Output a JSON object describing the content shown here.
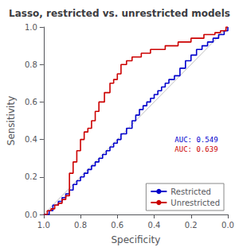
{
  "chart_data": {
    "type": "step",
    "title": "Lasso, restricted vs. unrestricted models",
    "xlabel": "Specificity",
    "ylabel": "Sensitivity",
    "xlim": [
      1.0,
      0.0
    ],
    "ylim": [
      0.0,
      1.0
    ],
    "xticks": [
      {
        "value": 1.0,
        "label": "1.0"
      },
      0.8,
      0.6,
      0.4,
      0.2,
      {
        "value": 0.0,
        "label": "0.0"
      }
    ],
    "yticks": [
      {
        "value": 0.0,
        "label": "0.0"
      },
      0.2,
      0.4,
      0.6,
      0.8,
      {
        "value": 1.0,
        "label": "1.0"
      }
    ],
    "grid": false,
    "legend": "lower right",
    "series": [
      {
        "type": "line",
        "color": "#c0c0c0",
        "x": [
          1.0,
          0.0
        ],
        "values": [
          0.0,
          1.0
        ]
      },
      {
        "name": "Restricted",
        "color": "#0000cc",
        "x": [
          1.0,
          0.97,
          0.95,
          0.92,
          0.9,
          0.88,
          0.86,
          0.84,
          0.82,
          0.8,
          0.78,
          0.76,
          0.74,
          0.72,
          0.7,
          0.68,
          0.66,
          0.64,
          0.62,
          0.6,
          0.58,
          0.55,
          0.52,
          0.5,
          0.48,
          0.46,
          0.44,
          0.42,
          0.4,
          0.38,
          0.36,
          0.34,
          0.32,
          0.29,
          0.26,
          0.23,
          0.2,
          0.17,
          0.14,
          0.11,
          0.08,
          0.05,
          0.02,
          0.0
        ],
        "values": [
          0.0,
          0.02,
          0.05,
          0.07,
          0.09,
          0.11,
          0.13,
          0.16,
          0.18,
          0.2,
          0.22,
          0.24,
          0.26,
          0.28,
          0.3,
          0.32,
          0.34,
          0.36,
          0.38,
          0.4,
          0.43,
          0.46,
          0.5,
          0.53,
          0.56,
          0.58,
          0.6,
          0.62,
          0.64,
          0.66,
          0.68,
          0.7,
          0.72,
          0.74,
          0.78,
          0.82,
          0.85,
          0.88,
          0.9,
          0.92,
          0.94,
          0.96,
          0.98,
          1.0
        ]
      },
      {
        "name": "Unrestricted",
        "color": "#cc0000",
        "x": [
          1.0,
          0.98,
          0.96,
          0.94,
          0.92,
          0.9,
          0.88,
          0.86,
          0.84,
          0.82,
          0.8,
          0.78,
          0.76,
          0.74,
          0.72,
          0.7,
          0.67,
          0.64,
          0.62,
          0.6,
          0.58,
          0.55,
          0.52,
          0.5,
          0.47,
          0.44,
          0.42,
          0.4,
          0.37,
          0.34,
          0.3,
          0.27,
          0.23,
          0.2,
          0.17,
          0.13,
          0.1,
          0.07,
          0.04,
          0.01,
          0.0
        ],
        "values": [
          0.0,
          0.02,
          0.03,
          0.05,
          0.06,
          0.08,
          0.1,
          0.22,
          0.28,
          0.34,
          0.4,
          0.44,
          0.46,
          0.5,
          0.55,
          0.6,
          0.65,
          0.7,
          0.72,
          0.75,
          0.8,
          0.82,
          0.84,
          0.84,
          0.86,
          0.86,
          0.88,
          0.88,
          0.88,
          0.9,
          0.9,
          0.92,
          0.92,
          0.94,
          0.94,
          0.96,
          0.96,
          0.97,
          0.98,
          1.0,
          1.0
        ]
      }
    ],
    "annotations": [
      {
        "text": "AUC: 0.549",
        "color": "#0000cc"
      },
      {
        "text": "AUC: 0.639",
        "color": "#cc0000"
      }
    ]
  }
}
